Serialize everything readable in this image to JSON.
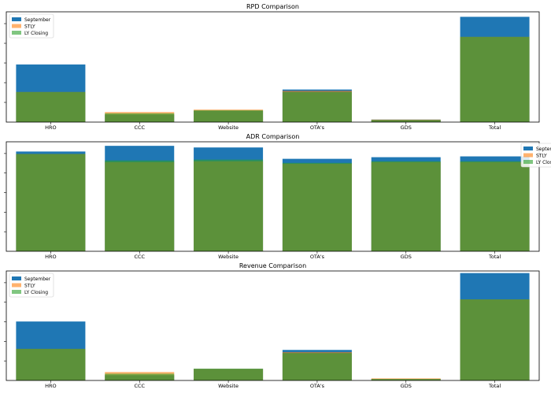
{
  "chart_data": [
    {
      "type": "bar",
      "title": "RPD Comparison",
      "categories": [
        "HRO",
        "CCC",
        "Website",
        "OTA's",
        "GDS",
        "Total"
      ],
      "series": [
        {
          "name": "September",
          "color": "#1f77b4",
          "values": [
            23,
            3,
            4.5,
            13,
            1,
            42
          ]
        },
        {
          "name": "STLY",
          "color": "#ff7f0e",
          "values": [
            12,
            4,
            5,
            12.5,
            1,
            34
          ]
        },
        {
          "name": "LY Closing",
          "color": "#2ca02c",
          "values": [
            12,
            3.5,
            4.7,
            12,
            0.8,
            34
          ]
        }
      ],
      "ylim": [
        0,
        44
      ],
      "legend": "top-left",
      "xlabel": "",
      "ylabel": ""
    },
    {
      "type": "bar",
      "title": "ADR Comparison",
      "categories": [
        "HRO",
        "CCC",
        "Website",
        "OTA's",
        "GDS",
        "Total"
      ],
      "series": [
        {
          "name": "September",
          "color": "#1f77b4",
          "values": [
            123,
            130,
            128,
            114,
            116,
            117
          ]
        },
        {
          "name": "STLY",
          "color": "#ff7f0e",
          "values": [
            120,
            110,
            111,
            108,
            110,
            110
          ]
        },
        {
          "name": "LY Closing",
          "color": "#2ca02c",
          "values": [
            120,
            112,
            113,
            109,
            111,
            111
          ]
        }
      ],
      "ylim": [
        0,
        135
      ],
      "legend": "top-right",
      "xlabel": "",
      "ylabel": ""
    },
    {
      "type": "bar",
      "title": "Revenue Comparison",
      "categories": [
        "HRO",
        "CCC",
        "Website",
        "OTA's",
        "GDS",
        "Total"
      ],
      "series": [
        {
          "name": "September",
          "color": "#1f77b4",
          "values": [
            2800,
            250,
            550,
            1450,
            60,
            5100
          ]
        },
        {
          "name": "STLY",
          "color": "#ff7f0e",
          "values": [
            1500,
            400,
            550,
            1350,
            100,
            3850
          ]
        },
        {
          "name": "LY Closing",
          "color": "#2ca02c",
          "values": [
            1500,
            320,
            560,
            1300,
            70,
            3850
          ]
        }
      ],
      "ylim": [
        0,
        5200
      ],
      "legend": "top-left",
      "xlabel": "",
      "ylabel": ""
    }
  ]
}
